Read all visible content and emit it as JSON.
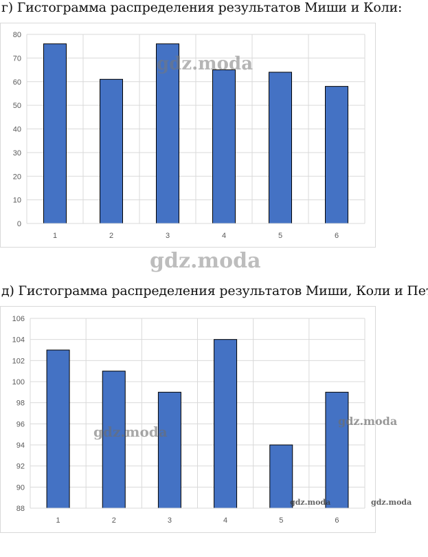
{
  "headings": {
    "g": "г) Гистограмма распределения результатов Миши и Коли:",
    "d": "д) Гистограмма распределения результатов Миши, Коли и Пети:"
  },
  "watermarks": {
    "main": "gdz.moda",
    "small": "gdz.moda"
  },
  "colors": {
    "bar": "#4472c4",
    "bar_border": "#000000",
    "grid": "#d9d9d9",
    "tick_text": "#595959"
  },
  "chart_data": [
    {
      "type": "bar",
      "title": "",
      "xlabel": "",
      "ylabel": "",
      "categories": [
        "1",
        "2",
        "3",
        "4",
        "5",
        "6"
      ],
      "values": [
        76,
        61,
        76,
        65,
        64,
        58
      ],
      "ylim": [
        0,
        80
      ],
      "yticks": [
        0,
        10,
        20,
        30,
        40,
        50,
        60,
        70,
        80
      ],
      "grid": true,
      "legend": "none"
    },
    {
      "type": "bar",
      "title": "",
      "xlabel": "",
      "ylabel": "",
      "categories": [
        "1",
        "2",
        "3",
        "4",
        "5",
        "6"
      ],
      "values": [
        103,
        101,
        99,
        104,
        94,
        99
      ],
      "ylim": [
        88,
        106
      ],
      "yticks": [
        88,
        90,
        92,
        94,
        96,
        98,
        100,
        102,
        104,
        106
      ],
      "grid": true,
      "legend": "none"
    }
  ]
}
